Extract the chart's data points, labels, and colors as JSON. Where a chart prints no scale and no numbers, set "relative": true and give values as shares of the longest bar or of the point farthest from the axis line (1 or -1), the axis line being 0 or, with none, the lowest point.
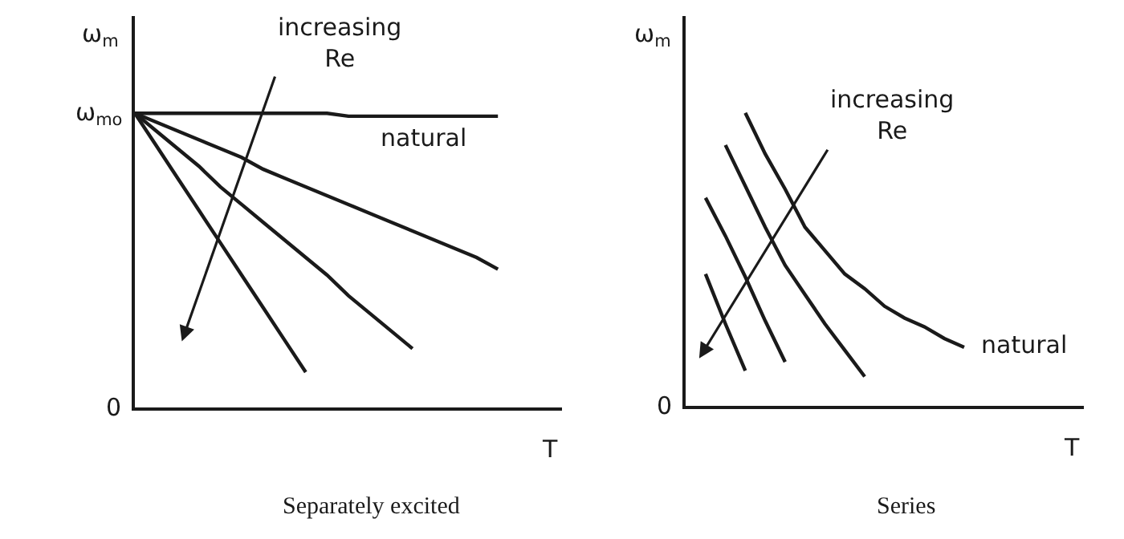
{
  "chart_data": [
    {
      "type": "line",
      "relative": true,
      "title": "Separately excited",
      "xlabel": "T",
      "ylabel": "ω$_{m}$",
      "marker": "none",
      "line_style": "solid",
      "categories": [
        null,
        null,
        null,
        null,
        null,
        null,
        null,
        null,
        null,
        null,
        null,
        null,
        null,
        null,
        null,
        null,
        null,
        null,
        null,
        null,
        null
      ],
      "annotations": [
        "ω$_{mo}$",
        "0",
        "natural",
        "increasing\nRe"
      ],
      "series": [
        {
          "color": "#1a1a1a",
          "values": [
            1,
            1,
            1,
            1,
            1,
            1,
            1,
            1,
            1,
            1,
            0.99,
            0.99,
            0.99,
            0.99,
            0.99,
            0.99,
            0.99,
            0.99,
            null,
            null,
            null
          ]
        },
        {
          "color": "#1a1a1a",
          "values": [
            1,
            0.97,
            0.94,
            0.91,
            0.88,
            0.85,
            0.81,
            0.78,
            0.75,
            0.72,
            0.69,
            0.66,
            0.63,
            0.6,
            0.57,
            0.54,
            0.51,
            0.47,
            null,
            null,
            null
          ]
        },
        {
          "color": "#1a1a1a",
          "values": [
            1,
            0.94,
            0.88,
            0.82,
            0.75,
            0.69,
            0.63,
            0.57,
            0.51,
            0.45,
            0.38,
            0.32,
            0.26,
            0.2,
            null,
            null,
            null,
            null,
            null,
            null,
            null
          ]
        },
        {
          "color": "#1a1a1a",
          "values": [
            1,
            0.89,
            0.78,
            0.67,
            0.56,
            0.45,
            0.34,
            0.23,
            0.12,
            null,
            null,
            null,
            null,
            null,
            null,
            null,
            null,
            null,
            null,
            null,
            null
          ]
        }
      ]
    },
    {
      "type": "line",
      "relative": true,
      "title": "Series",
      "xlabel": "T",
      "ylabel": "ω$_{m}$",
      "marker": "none",
      "line_style": "solid",
      "categories": [
        null,
        null,
        null,
        null,
        null,
        null,
        null,
        null,
        null,
        null,
        null,
        null,
        null,
        null,
        null,
        null,
        null,
        null,
        null,
        null,
        null
      ],
      "annotations": [
        "0",
        "natural",
        "increasing\nRe"
      ],
      "series": [
        {
          "color": "#1a1a1a",
          "values": [
            null,
            0.45,
            0.28,
            0.12,
            null,
            null,
            null,
            null,
            null,
            null,
            null,
            null,
            null,
            null,
            null,
            null,
            null,
            null,
            null,
            null,
            null
          ]
        },
        {
          "color": "#1a1a1a",
          "values": [
            null,
            0.71,
            0.58,
            0.44,
            0.29,
            0.15,
            null,
            null,
            null,
            null,
            null,
            null,
            null,
            null,
            null,
            null,
            null,
            null,
            null,
            null,
            null
          ]
        },
        {
          "color": "#1a1a1a",
          "values": [
            null,
            null,
            0.89,
            0.75,
            0.61,
            0.48,
            0.38,
            0.28,
            0.19,
            0.1,
            null,
            null,
            null,
            null,
            null,
            null,
            null,
            null,
            null,
            null,
            null
          ]
        },
        {
          "color": "#1a1a1a",
          "values": [
            null,
            null,
            null,
            1,
            0.86,
            0.74,
            0.61,
            0.53,
            0.45,
            0.4,
            0.34,
            0.3,
            0.27,
            0.23,
            0.2,
            null,
            null,
            null,
            null,
            null,
            null
          ]
        }
      ]
    }
  ]
}
